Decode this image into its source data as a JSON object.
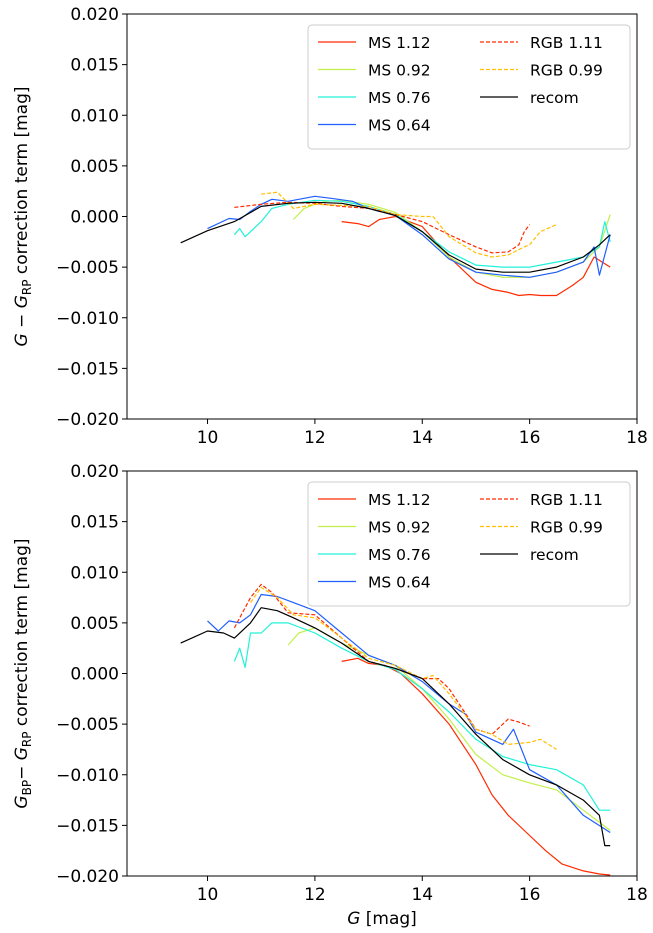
{
  "chart_data": [
    {
      "type": "line",
      "panel": "top",
      "title": "",
      "xlabel": "",
      "ylabel": "G − G_RP correction term [mag]",
      "ylabel_parts": {
        "base": "G",
        "minus": "−",
        "var": "G",
        "sub": "RP",
        "rest": " correction term [mag]"
      },
      "xlim": [
        8.5,
        18
      ],
      "ylim": [
        -0.02,
        0.02
      ],
      "xticks": [
        10,
        12,
        14,
        16,
        18
      ],
      "xtick_labels": [
        "10",
        "12",
        "14",
        "16",
        "18"
      ],
      "yticks": [
        -0.02,
        -0.015,
        -0.01,
        -0.005,
        0,
        0.005,
        0.01,
        0.015,
        0.02
      ],
      "ytick_labels": [
        "−0.020",
        "−0.015",
        "−0.010",
        "−0.005",
        "0.000",
        "0.005",
        "0.010",
        "0.015",
        "0.020"
      ],
      "grid": false,
      "legend": "top-right",
      "series": [
        {
          "name": "MS 1.12",
          "color": "#ff2a00",
          "dash": "solid",
          "x": [
            12.5,
            12.8,
            13.0,
            13.2,
            13.5,
            14.0,
            14.5,
            15.0,
            15.3,
            15.6,
            15.8,
            16.0,
            16.2,
            16.5,
            16.8,
            17.0,
            17.2,
            17.5
          ],
          "y": [
            -0.0005,
            -0.0007,
            -0.001,
            -0.0003,
            0.0,
            -0.001,
            -0.004,
            -0.0065,
            -0.0072,
            -0.0075,
            -0.0078,
            -0.0077,
            -0.0078,
            -0.0078,
            -0.0068,
            -0.006,
            -0.004,
            -0.005
          ]
        },
        {
          "name": "MS 0.92",
          "color": "#c2f04a",
          "dash": "solid",
          "x": [
            11.6,
            11.8,
            12.0,
            12.2,
            12.5,
            13.0,
            13.5,
            14.0,
            14.5,
            15.0,
            15.5,
            16.0,
            16.5,
            17.0,
            17.3,
            17.5
          ],
          "y": [
            -0.0003,
            0.0008,
            0.0012,
            0.0015,
            0.0016,
            0.0012,
            0.0004,
            -0.0015,
            -0.004,
            -0.0055,
            -0.006,
            -0.006,
            -0.0055,
            -0.0045,
            -0.003,
            0.0002
          ]
        },
        {
          "name": "MS 0.76",
          "color": "#20f2d8",
          "dash": "solid",
          "x": [
            10.5,
            10.6,
            10.7,
            11.0,
            11.2,
            11.5,
            12.0,
            12.5,
            13.0,
            13.5,
            14.0,
            14.5,
            15.0,
            15.5,
            16.0,
            16.5,
            17.0,
            17.3,
            17.4,
            17.5
          ],
          "y": [
            -0.0018,
            -0.0012,
            -0.002,
            -0.0005,
            0.0008,
            0.0012,
            0.0016,
            0.0015,
            0.001,
            0.0002,
            -0.0015,
            -0.0035,
            -0.0048,
            -0.005,
            -0.005,
            -0.0045,
            -0.004,
            -0.003,
            -0.0005,
            -0.0025
          ]
        },
        {
          "name": "MS 0.64",
          "color": "#1f5fff",
          "dash": "solid",
          "x": [
            10.0,
            10.4,
            10.6,
            10.8,
            11.0,
            11.2,
            11.5,
            12.0,
            12.3,
            12.7,
            13.0,
            13.5,
            14.0,
            14.5,
            15.0,
            15.5,
            16.0,
            16.5,
            17.0,
            17.2,
            17.3,
            17.5
          ],
          "y": [
            -0.0012,
            -0.0002,
            -0.0003,
            0.0005,
            0.0012,
            0.0017,
            0.0015,
            0.002,
            0.0018,
            0.0015,
            0.0008,
            0.0001,
            -0.0018,
            -0.0042,
            -0.0055,
            -0.0058,
            -0.006,
            -0.0055,
            -0.0045,
            -0.003,
            -0.0058,
            -0.0018
          ]
        },
        {
          "name": "RGB 1.11",
          "color": "#ff2a00",
          "dash": "dashed",
          "x": [
            10.5,
            11.0,
            11.5,
            12.0,
            12.5,
            13.0,
            13.5,
            14.0,
            14.5,
            15.0,
            15.3,
            15.6,
            15.8,
            15.9,
            16.0
          ],
          "y": [
            0.0009,
            0.0012,
            0.0014,
            0.0013,
            0.001,
            0.0008,
            0.0002,
            -0.0005,
            -0.0018,
            -0.003,
            -0.0036,
            -0.0035,
            -0.0028,
            -0.0015,
            -0.0008
          ]
        },
        {
          "name": "RGB 0.99",
          "color": "#ffbf00",
          "dash": "dashed",
          "x": [
            11.0,
            11.3,
            11.6,
            12.0,
            12.5,
            13.0,
            13.5,
            14.0,
            14.2,
            14.5,
            15.0,
            15.3,
            15.6,
            15.9,
            16.0,
            16.2,
            16.5
          ],
          "y": [
            0.0022,
            0.0024,
            0.0008,
            0.0012,
            0.0011,
            0.001,
            0.0002,
            0.0,
            0.0,
            -0.002,
            -0.0036,
            -0.004,
            -0.0038,
            -0.003,
            -0.0028,
            -0.0015,
            -0.0008
          ]
        },
        {
          "name": "recom",
          "color": "#000000",
          "dash": "solid",
          "x": [
            9.5,
            10.0,
            10.5,
            11.0,
            11.5,
            12.0,
            12.5,
            13.0,
            13.5,
            14.0,
            14.5,
            15.0,
            15.5,
            16.0,
            16.5,
            17.0,
            17.3,
            17.5
          ],
          "y": [
            -0.0026,
            -0.0014,
            -0.0005,
            0.001,
            0.0013,
            0.0014,
            0.0013,
            0.0008,
            0.0001,
            -0.0015,
            -0.0038,
            -0.0052,
            -0.0055,
            -0.0055,
            -0.005,
            -0.004,
            -0.0028,
            -0.0018
          ]
        }
      ]
    },
    {
      "type": "line",
      "panel": "bottom",
      "title": "",
      "xlabel": "G [mag]",
      "xlabel_parts": {
        "var": "G",
        "rest": " [mag]"
      },
      "ylabel": "G_BP − G_RP correction term [mag]",
      "ylabel_parts": {
        "base": "G",
        "base_sub": "BP",
        "minus": " − ",
        "var": "G",
        "sub": "RP",
        "rest": " correction term [mag]"
      },
      "xlim": [
        8.5,
        18
      ],
      "ylim": [
        -0.02,
        0.02
      ],
      "xticks": [
        10,
        12,
        14,
        16,
        18
      ],
      "xtick_labels": [
        "10",
        "12",
        "14",
        "16",
        "18"
      ],
      "yticks": [
        -0.02,
        -0.015,
        -0.01,
        -0.005,
        0,
        0.005,
        0.01,
        0.015,
        0.02
      ],
      "ytick_labels": [
        "−0.020",
        "−0.015",
        "−0.010",
        "−0.005",
        "0.000",
        "0.005",
        "0.010",
        "0.015",
        "0.020"
      ],
      "grid": false,
      "legend": "top-right",
      "series": [
        {
          "name": "MS 1.12",
          "color": "#ff2a00",
          "dash": "solid",
          "x": [
            12.5,
            12.8,
            13.0,
            13.3,
            13.6,
            14.0,
            14.5,
            15.0,
            15.3,
            15.6,
            16.0,
            16.3,
            16.6,
            17.0,
            17.3,
            17.5
          ],
          "y": [
            0.0012,
            0.0015,
            0.001,
            0.0008,
            0.0,
            -0.002,
            -0.005,
            -0.009,
            -0.012,
            -0.014,
            -0.016,
            -0.0175,
            -0.0188,
            -0.0195,
            -0.0198,
            -0.0199
          ]
        },
        {
          "name": "MS 0.92",
          "color": "#c2f04a",
          "dash": "solid",
          "x": [
            11.5,
            11.7,
            12.0,
            12.5,
            13.0,
            13.5,
            14.0,
            14.5,
            15.0,
            15.5,
            16.0,
            16.5,
            17.0,
            17.5
          ],
          "y": [
            0.0028,
            0.004,
            0.0045,
            0.003,
            0.0018,
            0.0008,
            -0.0015,
            -0.0045,
            -0.008,
            -0.01,
            -0.0108,
            -0.0115,
            -0.0135,
            -0.0155
          ]
        },
        {
          "name": "MS 0.76",
          "color": "#20f2d8",
          "dash": "solid",
          "x": [
            10.5,
            10.6,
            10.7,
            10.8,
            11.0,
            11.2,
            11.5,
            12.0,
            12.5,
            13.0,
            13.5,
            14.0,
            14.5,
            15.0,
            15.5,
            16.0,
            16.5,
            17.0,
            17.3,
            17.5
          ],
          "y": [
            0.0012,
            0.0025,
            0.0006,
            0.004,
            0.004,
            0.005,
            0.005,
            0.004,
            0.0025,
            0.0012,
            0.0004,
            -0.0015,
            -0.0038,
            -0.0065,
            -0.0082,
            -0.009,
            -0.0095,
            -0.011,
            -0.0135,
            -0.0135
          ]
        },
        {
          "name": "MS 0.64",
          "color": "#1f5fff",
          "dash": "solid",
          "x": [
            10.0,
            10.2,
            10.4,
            10.6,
            10.8,
            11.0,
            11.3,
            11.6,
            12.0,
            12.5,
            13.0,
            13.5,
            14.0,
            14.5,
            14.8,
            15.0,
            15.5,
            15.7,
            16.0,
            16.5,
            17.0,
            17.5
          ],
          "y": [
            0.0052,
            0.0042,
            0.0052,
            0.005,
            0.0058,
            0.0078,
            0.0076,
            0.007,
            0.0062,
            0.004,
            0.0018,
            0.0008,
            -0.0008,
            -0.003,
            -0.004,
            -0.0058,
            -0.007,
            -0.0055,
            -0.0095,
            -0.011,
            -0.014,
            -0.0157
          ]
        },
        {
          "name": "RGB 1.11",
          "color": "#ff2a00",
          "dash": "dashed",
          "x": [
            10.5,
            10.8,
            11.0,
            11.2,
            11.5,
            12.0,
            12.5,
            13.0,
            13.5,
            14.0,
            14.3,
            14.5,
            15.0,
            15.3,
            15.6,
            15.8,
            16.0
          ],
          "y": [
            0.0045,
            0.0075,
            0.0088,
            0.008,
            0.006,
            0.0058,
            0.0035,
            0.0012,
            0.0005,
            -0.0005,
            -0.0005,
            -0.0015,
            -0.0055,
            -0.006,
            -0.0045,
            -0.0048,
            -0.0052
          ]
        },
        {
          "name": "RGB 0.99",
          "color": "#ffbf00",
          "dash": "dashed",
          "x": [
            10.8,
            11.0,
            11.3,
            11.6,
            12.0,
            12.5,
            13.0,
            13.5,
            14.0,
            14.2,
            14.5,
            15.0,
            15.3,
            15.6,
            16.0,
            16.2,
            16.5
          ],
          "y": [
            0.007,
            0.0085,
            0.0075,
            0.0058,
            0.0055,
            0.0035,
            0.0015,
            0.0008,
            -0.0005,
            -0.0002,
            -0.002,
            -0.0055,
            -0.006,
            -0.007,
            -0.0068,
            -0.0065,
            -0.0075
          ]
        },
        {
          "name": "recom",
          "color": "#000000",
          "dash": "solid",
          "x": [
            9.5,
            10.0,
            10.3,
            10.5,
            10.8,
            11.0,
            11.3,
            11.6,
            12.0,
            12.5,
            13.0,
            13.5,
            14.0,
            14.5,
            15.0,
            15.5,
            16.0,
            16.5,
            17.0,
            17.3,
            17.4,
            17.5
          ],
          "y": [
            0.003,
            0.0042,
            0.004,
            0.0035,
            0.005,
            0.0065,
            0.0062,
            0.0055,
            0.0045,
            0.003,
            0.0012,
            0.0005,
            -0.0005,
            -0.003,
            -0.006,
            -0.0085,
            -0.01,
            -0.011,
            -0.0125,
            -0.014,
            -0.017,
            -0.017
          ]
        }
      ]
    }
  ]
}
